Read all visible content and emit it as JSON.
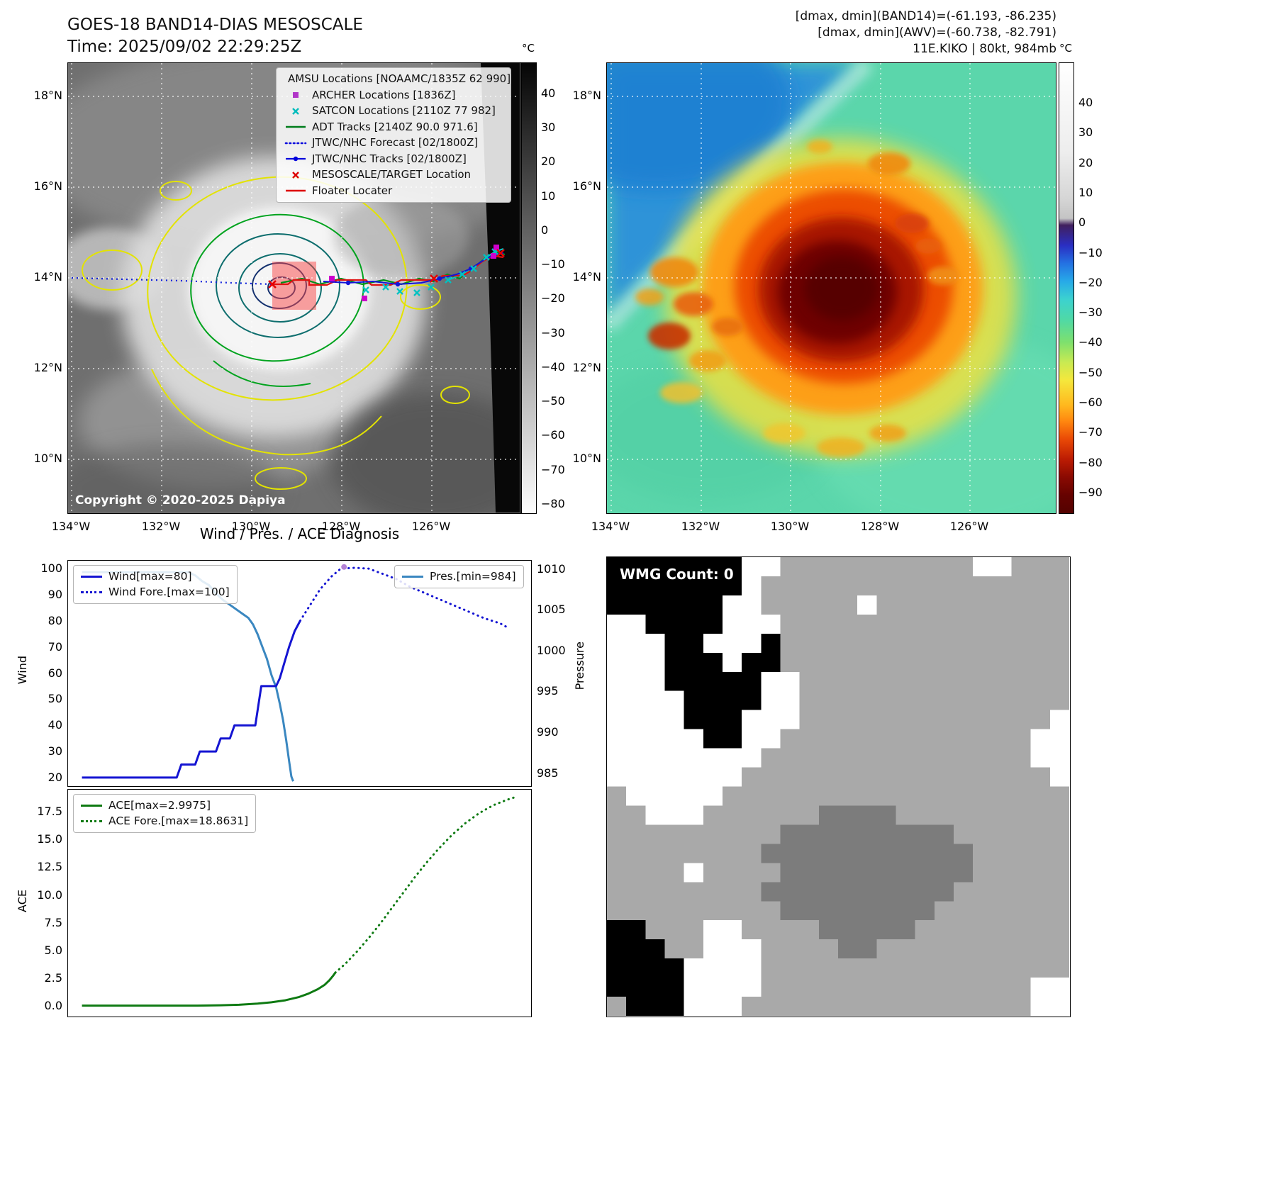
{
  "panel_tl": {
    "title_line1": "GOES-18 BAND14-DIAS MESOSCALE",
    "title_line2": "Time: 2025/09/02 22:29:25Z",
    "copyright": "Copyright © 2020-2025 Dapiya",
    "legend_items": [
      {
        "label": "AMSU Locations [NOAAMC/1835Z 62 990]",
        "marker": "square",
        "color": "#cc00cc"
      },
      {
        "label": "ARCHER Locations [1836Z]",
        "marker": "square",
        "color": "#b136c8"
      },
      {
        "label": "SATCON Locations [2110Z 77 982]",
        "marker": "x",
        "color": "#00bcbc"
      },
      {
        "label": "ADT Tracks [2140Z 90.0 971.6]",
        "marker": "line",
        "color": "#007d1c"
      },
      {
        "label": "JTWC/NHC Forecast [02/1800Z]",
        "marker": "dotline",
        "color": "#0000dd"
      },
      {
        "label": "JTWC/NHC Tracks [02/1800Z]",
        "marker": "dotmarker",
        "color": "#0000dd"
      },
      {
        "label": "MESOSCALE/TARGET Location",
        "marker": "x",
        "color": "#dd0000"
      },
      {
        "label": "Floater Locater",
        "marker": "line",
        "color": "#dd0000"
      }
    ],
    "lat_ticks": [
      "18°N",
      "16°N",
      "14°N",
      "12°N",
      "10°N"
    ],
    "lon_ticks": [
      "134°W",
      "132°W",
      "130°W",
      "128°W",
      "126°W"
    ],
    "colorbar_unit": "°C",
    "colorbar_ticks": [
      40,
      30,
      20,
      10,
      0,
      -10,
      -20,
      -30,
      -40,
      -50,
      -60,
      -70,
      -80
    ]
  },
  "panel_tr": {
    "header_line1": "[dmax, dmin](BAND14)=(-61.193, -86.235)",
    "header_line2": "[dmax, dmin](AWV)=(-60.738, -82.791)",
    "header_line3": "11E.KIKO | 80kt, 984mb",
    "lat_ticks": [
      "18°N",
      "16°N",
      "14°N",
      "12°N",
      "10°N"
    ],
    "lon_ticks": [
      "134°W",
      "132°W",
      "130°W",
      "128°W",
      "126°W"
    ],
    "colorbar_unit": "°C",
    "colorbar_ticks": [
      40,
      30,
      20,
      10,
      0,
      -10,
      -20,
      -30,
      -40,
      -50,
      -60,
      -70,
      -80,
      -90
    ]
  },
  "chart_data": [
    {
      "type": "line",
      "title": "Wind / Pres. / ACE Diagnosis",
      "ylabel_left": "Wind",
      "ylabel_right": "Pressure",
      "ylim_left": [
        17,
        103
      ],
      "ylim_right": [
        983.5,
        1011
      ],
      "yticks_left": [
        100,
        90,
        80,
        70,
        60,
        50,
        40,
        30,
        20
      ],
      "yticks_right": [
        1010,
        1005,
        1000,
        995,
        990,
        985
      ],
      "ytick_decimals": 0,
      "x_axis": {
        "range": [
          0,
          1
        ],
        "labels_visible": false
      },
      "grid": false,
      "legend_positions": {
        "wind": "upper left",
        "pressure": "upper right"
      },
      "series": [
        {
          "name": "Pres.[min=984]",
          "axis": "right",
          "style": "solid",
          "color": "#3a87c0",
          "points": [
            [
              0.03,
              1009.6
            ],
            [
              0.26,
              1009.6
            ],
            [
              0.275,
              1009.2
            ],
            [
              0.29,
              1008.5
            ],
            [
              0.305,
              1008
            ],
            [
              0.32,
              1007
            ],
            [
              0.335,
              1006.2
            ],
            [
              0.35,
              1005.6
            ],
            [
              0.365,
              1005
            ],
            [
              0.38,
              1004.4
            ],
            [
              0.39,
              1004
            ],
            [
              0.4,
              1003.2
            ],
            [
              0.41,
              1002
            ],
            [
              0.42,
              1000.5
            ],
            [
              0.43,
              999
            ],
            [
              0.44,
              997
            ],
            [
              0.45,
              995.5
            ],
            [
              0.458,
              993.5
            ],
            [
              0.465,
              991.5
            ],
            [
              0.472,
              989
            ],
            [
              0.478,
              986.5
            ],
            [
              0.483,
              984.6
            ],
            [
              0.487,
              984
            ]
          ]
        },
        {
          "name": "Wind[max=80]",
          "axis": "left",
          "style": "solid",
          "color": "#1414d2",
          "points": [
            [
              0.03,
              20
            ],
            [
              0.235,
              20
            ],
            [
              0.245,
              25
            ],
            [
              0.275,
              25
            ],
            [
              0.285,
              30
            ],
            [
              0.32,
              30
            ],
            [
              0.33,
              35
            ],
            [
              0.35,
              35
            ],
            [
              0.36,
              40
            ],
            [
              0.405,
              40
            ],
            [
              0.418,
              55
            ],
            [
              0.45,
              55
            ],
            [
              0.458,
              58
            ],
            [
              0.468,
              64
            ],
            [
              0.478,
              70
            ],
            [
              0.49,
              76
            ],
            [
              0.502,
              80
            ]
          ]
        },
        {
          "name": "Wind Fore.[max=100]",
          "axis": "left",
          "style": "dotted",
          "color": "#1414d2",
          "points": [
            [
              0.502,
              80
            ],
            [
              0.52,
              85
            ],
            [
              0.545,
              92
            ],
            [
              0.57,
              97
            ],
            [
              0.59,
              100
            ],
            [
              0.62,
              100.3
            ],
            [
              0.65,
              100
            ],
            [
              0.68,
              98
            ],
            [
              0.71,
              96
            ],
            [
              0.74,
              93
            ],
            [
              0.78,
              90
            ],
            [
              0.82,
              87
            ],
            [
              0.86,
              84
            ],
            [
              0.9,
              81
            ],
            [
              0.935,
              79
            ],
            [
              0.955,
              77
            ]
          ]
        },
        {
          "name": "obs-dot",
          "axis": "left",
          "style": "marker",
          "color": "#b583d6",
          "points": [
            [
              0.597,
              100.6
            ]
          ]
        }
      ]
    },
    {
      "type": "line",
      "ylabel_left": "ACE",
      "ylim_left": [
        -0.9,
        19.5
      ],
      "yticks_left": [
        17.5,
        15.0,
        12.5,
        10.0,
        7.5,
        5.0,
        2.5,
        0.0
      ],
      "ytick_decimals": 1,
      "x_axis": {
        "range": [
          0,
          1
        ],
        "labels_visible": false
      },
      "grid": false,
      "legend_positions": {
        "ace": "upper left"
      },
      "series": [
        {
          "name": "ACE[max=2.9975]",
          "axis": "left",
          "style": "solid",
          "color": "#0e7a12",
          "points": [
            [
              0.03,
              0.02
            ],
            [
              0.28,
              0.02
            ],
            [
              0.33,
              0.05
            ],
            [
              0.37,
              0.1
            ],
            [
              0.41,
              0.2
            ],
            [
              0.44,
              0.32
            ],
            [
              0.47,
              0.5
            ],
            [
              0.5,
              0.8
            ],
            [
              0.52,
              1.1
            ],
            [
              0.54,
              1.5
            ],
            [
              0.555,
              1.9
            ],
            [
              0.565,
              2.3
            ],
            [
              0.573,
              2.7
            ],
            [
              0.578,
              2.9975
            ]
          ]
        },
        {
          "name": "ACE Fore.[max=18.8631]",
          "axis": "left",
          "style": "dotted",
          "color": "#0e7a12",
          "points": [
            [
              0.578,
              2.9975
            ],
            [
              0.6,
              3.8
            ],
            [
              0.625,
              4.9
            ],
            [
              0.65,
              6.1
            ],
            [
              0.675,
              7.4
            ],
            [
              0.7,
              8.8
            ],
            [
              0.725,
              10.2
            ],
            [
              0.75,
              11.6
            ],
            [
              0.775,
              12.9
            ],
            [
              0.8,
              14.1
            ],
            [
              0.83,
              15.4
            ],
            [
              0.86,
              16.5
            ],
            [
              0.89,
              17.4
            ],
            [
              0.92,
              18.1
            ],
            [
              0.95,
              18.6
            ],
            [
              0.97,
              18.8631
            ]
          ]
        }
      ]
    }
  ],
  "wmg": {
    "title": "WMG Count: 0",
    "palette": {
      "k": "#000000",
      "w": "#ffffff",
      "g": "#a9a9a9",
      "d": "#7c7c7c"
    },
    "grid": [
      "kkkkkkkwwggggggggggwwggg",
      "kkkkkkkwgggggggggggggggg",
      "kkkkkkwwgggggwgggggggggg",
      "wwkkkkwwwggggggggggggggg",
      "wwwkkwwwkggggggggggggggg",
      "wwwkkkwkkggggggggggggggg",
      "wwwkkkkkwwgggggggggggggg",
      "wwwwkkkkwwgggggggggggggg",
      "wwwwkkkwwwgggggggggggggw",
      "wwwwwkkwwgggggggggggggww",
      "wwwwwwwwggggggggggggggww",
      "wwwwwwwggggggggggggggggw",
      "gwwwwwgggggggggggggggggg",
      "ggwwwggggggddddggggggggg",
      "gggggggggdddddddddgggggg",
      "ggggggggdddddddddddggggg",
      "ggggwggggddddddddddggggg",
      "ggggggggddddddddddgggggg",
      "gggggggggddddddddggggggg",
      "kkgggwwggggdddddgggggggg",
      "kkkggwwwggggddgggggggggg",
      "kkkkwwwwgggggggggggggggg",
      "kkkkwwwwggggggggggggggww",
      "gkkkwwwgggggggggggggggww"
    ]
  }
}
